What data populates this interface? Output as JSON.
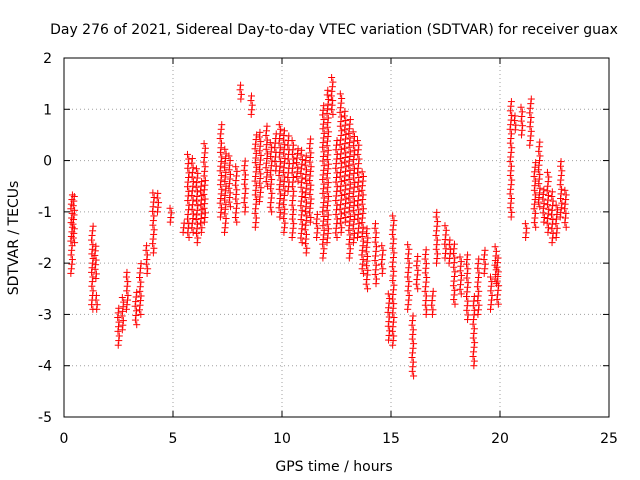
{
  "chart_data": {
    "type": "scatter",
    "title": "Day 276 of 2021, Sidereal Day-to-day VTEC variation (SDTVAR) for receiver guax",
    "xlabel": "GPS time / hours",
    "ylabel": "SDTVAR / TECUs",
    "xlim": [
      0,
      25
    ],
    "ylim": [
      -5,
      2
    ],
    "xticks": [
      0,
      5,
      10,
      15,
      20,
      25
    ],
    "yticks": [
      -5,
      -4,
      -3,
      -2,
      -1,
      0,
      1,
      2
    ],
    "grid": true,
    "marker": "+",
    "color": "#ff0000",
    "series": [
      {
        "name": "SDTVAR",
        "segments": [
          [
            0.35,
            -0.6,
            -2.2
          ],
          [
            0.45,
            -0.7,
            -1.6
          ],
          [
            1.3,
            -1.2,
            -2.9
          ],
          [
            1.45,
            -1.6,
            -2.3
          ],
          [
            1.5,
            -2.6,
            -2.9
          ],
          [
            2.5,
            -2.8,
            -3.6
          ],
          [
            2.7,
            -2.6,
            -3.3
          ],
          [
            2.9,
            -2.1,
            -2.9
          ],
          [
            3.3,
            -2.5,
            -3.2
          ],
          [
            3.5,
            -2.0,
            -3.0
          ],
          [
            3.8,
            -1.6,
            -2.2
          ],
          [
            4.1,
            -0.6,
            -1.8
          ],
          [
            4.3,
            -0.6,
            -1.0
          ],
          [
            4.9,
            -0.9,
            -1.2
          ],
          [
            5.5,
            -1.2,
            -1.4
          ],
          [
            5.7,
            0.2,
            -1.5
          ],
          [
            5.9,
            0.1,
            -1.4
          ],
          [
            6.1,
            -0.1,
            -1.6
          ],
          [
            6.3,
            -0.4,
            -1.4
          ],
          [
            6.45,
            0.4,
            -1.2
          ],
          [
            7.2,
            0.7,
            -1.1
          ],
          [
            7.4,
            0.3,
            -1.4
          ],
          [
            7.6,
            0.1,
            -0.9
          ],
          [
            7.9,
            -0.1,
            -1.2
          ],
          [
            8.1,
            1.5,
            1.2
          ],
          [
            8.3,
            0.0,
            -1.0
          ],
          [
            8.6,
            1.3,
            0.9
          ],
          [
            8.8,
            0.5,
            -1.3
          ],
          [
            9.0,
            0.6,
            -0.8
          ],
          [
            9.3,
            0.7,
            -0.5
          ],
          [
            9.5,
            0.4,
            -1.0
          ],
          [
            9.7,
            0.6,
            -0.2
          ],
          [
            9.9,
            0.7,
            -1.1
          ],
          [
            10.1,
            0.6,
            -1.4
          ],
          [
            10.3,
            0.5,
            -0.6
          ],
          [
            10.5,
            0.4,
            -1.5
          ],
          [
            10.7,
            0.3,
            -0.4
          ],
          [
            10.9,
            0.2,
            -1.6
          ],
          [
            11.1,
            0.1,
            -1.8
          ],
          [
            11.3,
            0.5,
            -1.2
          ],
          [
            11.6,
            -1.0,
            -1.5
          ],
          [
            11.9,
            1.1,
            -1.9
          ],
          [
            12.1,
            1.4,
            -1.6
          ],
          [
            12.3,
            1.7,
            0.9
          ],
          [
            12.5,
            0.4,
            -1.5
          ],
          [
            12.7,
            1.3,
            -1.4
          ],
          [
            12.9,
            1.0,
            -1.2
          ],
          [
            13.1,
            0.8,
            -1.9
          ],
          [
            13.3,
            0.6,
            -1.6
          ],
          [
            13.5,
            0.4,
            -1.5
          ],
          [
            13.7,
            -0.2,
            -2.2
          ],
          [
            13.9,
            -1.3,
            -2.5
          ],
          [
            14.3,
            -1.2,
            -2.4
          ],
          [
            14.6,
            -1.6,
            -2.2
          ],
          [
            14.9,
            -2.6,
            -3.5
          ],
          [
            15.1,
            -1.0,
            -3.6
          ],
          [
            15.8,
            -1.6,
            -2.9
          ],
          [
            16.0,
            -3.0,
            -4.2
          ],
          [
            16.2,
            -1.8,
            -2.5
          ],
          [
            16.6,
            -1.7,
            -3.0
          ],
          [
            16.9,
            -2.5,
            -3.0
          ],
          [
            17.1,
            -1.0,
            -2.0
          ],
          [
            17.5,
            -1.2,
            -1.9
          ],
          [
            17.7,
            -1.5,
            -2.0
          ],
          [
            17.9,
            -1.6,
            -2.8
          ],
          [
            18.2,
            -1.8,
            -2.6
          ],
          [
            18.5,
            -1.8,
            -3.1
          ],
          [
            18.8,
            -2.6,
            -4.0
          ],
          [
            19.0,
            -1.9,
            -3.0
          ],
          [
            19.3,
            -1.7,
            -2.2
          ],
          [
            19.6,
            -2.2,
            -2.9
          ],
          [
            19.8,
            -1.6,
            -2.4
          ],
          [
            19.9,
            -1.9,
            -2.8
          ],
          [
            20.5,
            1.2,
            -1.1
          ],
          [
            20.7,
            0.9,
            0.6
          ],
          [
            21.0,
            1.1,
            0.5
          ],
          [
            21.2,
            -1.2,
            -1.5
          ],
          [
            21.4,
            1.2,
            0.3
          ],
          [
            21.6,
            0.0,
            -1.3
          ],
          [
            21.8,
            0.4,
            -0.9
          ],
          [
            22.0,
            -0.5,
            -1.2
          ],
          [
            22.2,
            -0.2,
            -1.4
          ],
          [
            22.4,
            -0.6,
            -1.6
          ],
          [
            22.6,
            -0.8,
            -1.5
          ],
          [
            22.8,
            0.0,
            -1.1
          ],
          [
            23.0,
            -0.5,
            -1.3
          ]
        ]
      }
    ]
  }
}
